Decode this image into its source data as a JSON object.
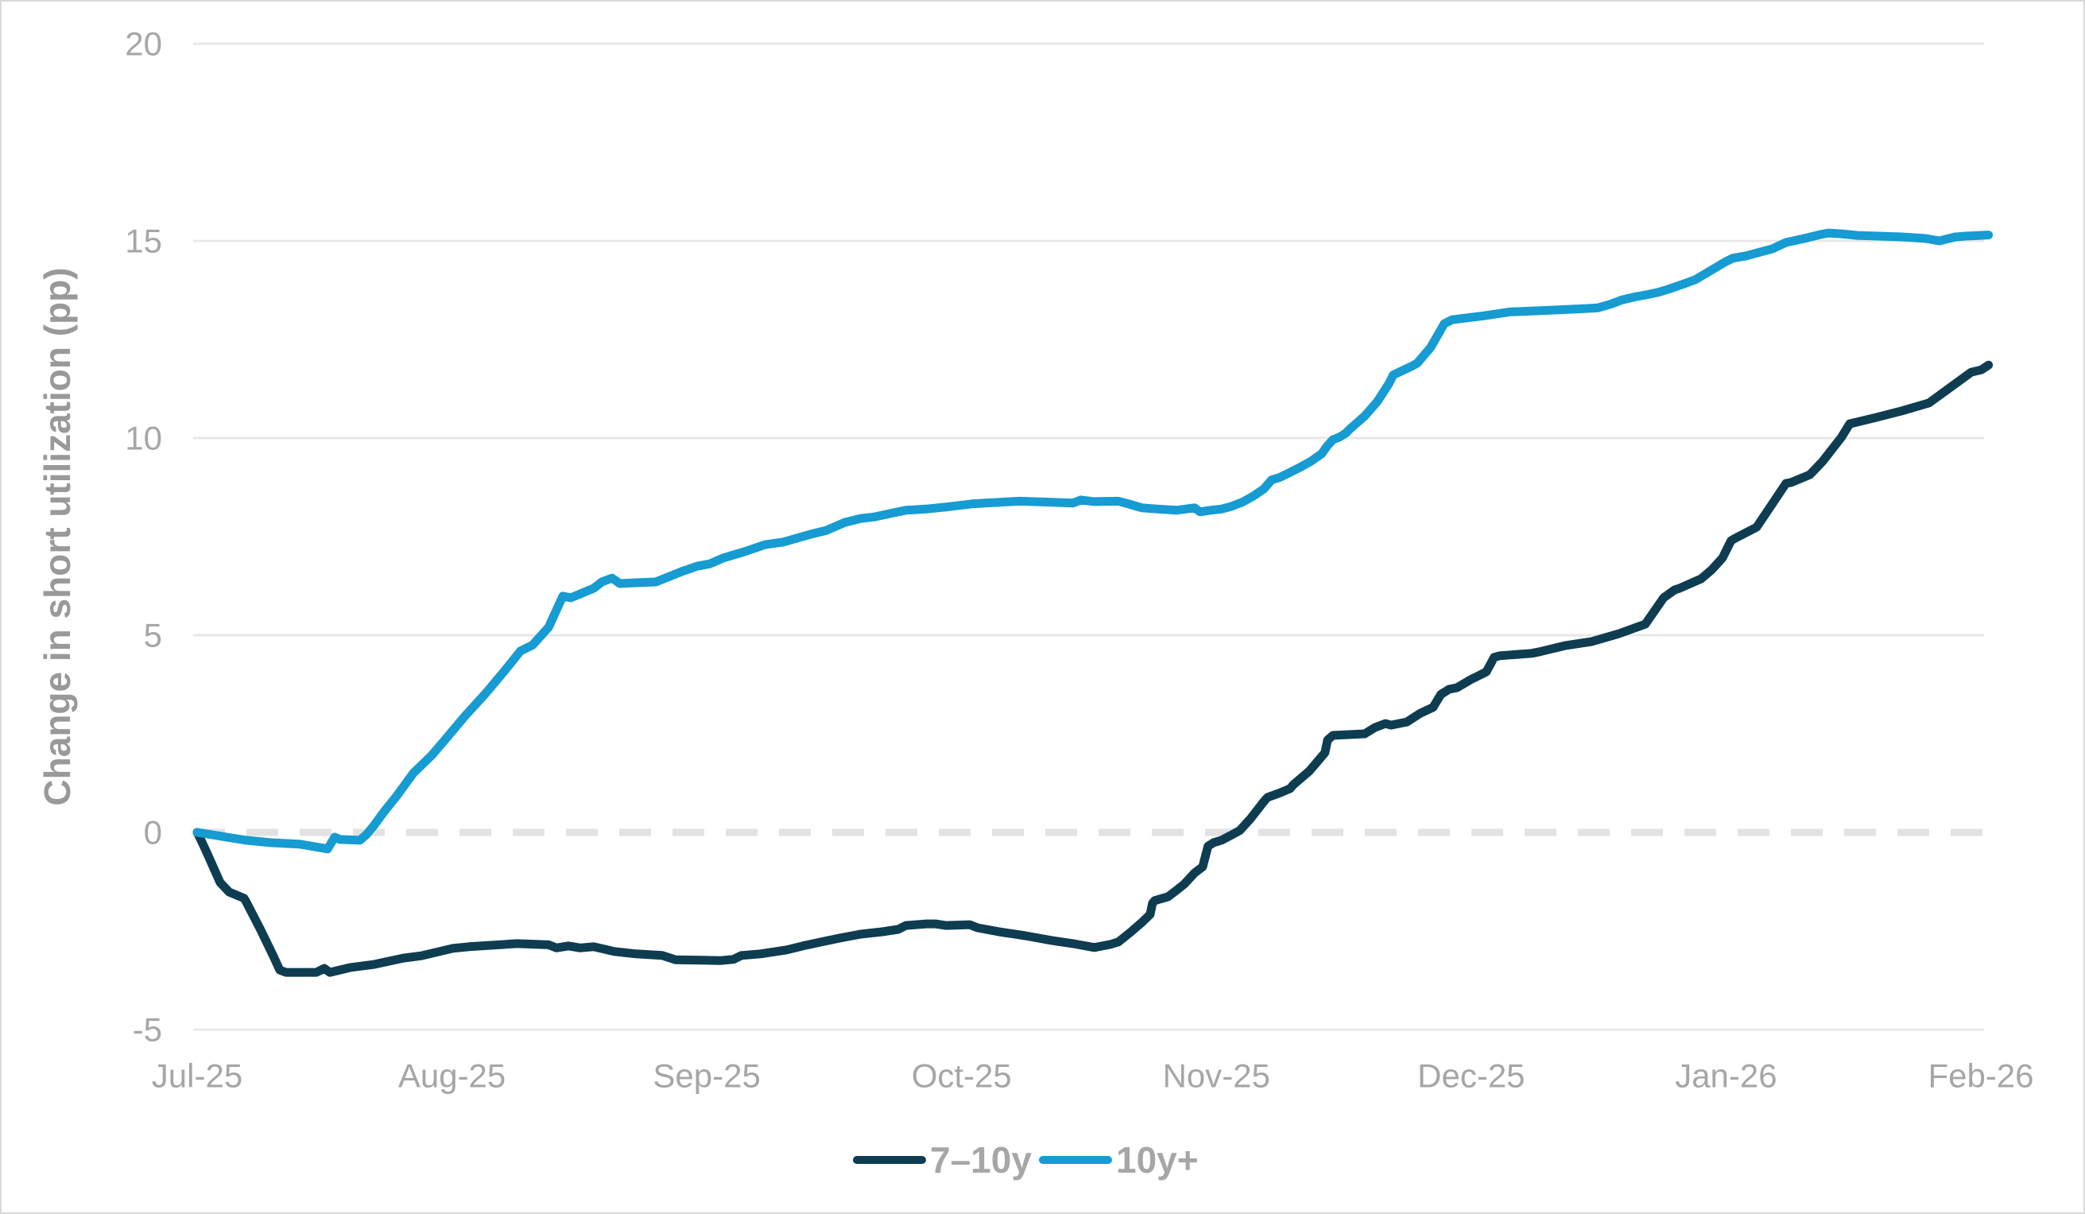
{
  "colors": {
    "background": "#ffffff",
    "frame_border": "#d9d9d9",
    "gridline": "#e8e8e8",
    "zero_dash_line": "#e2e2e2",
    "tick_text": "#a6a6a6",
    "axis_title_text": "#999999",
    "legend_text": "#a6a6a6",
    "series_7_10y": "#0e3d52",
    "series_10y_plus": "#169bd2"
  },
  "chart_data": {
    "type": "line",
    "title": "",
    "xlabel": "",
    "ylabel": "Change in short utilization (pp)",
    "x_ticks": [
      "Jul-25",
      "Aug-25",
      "Sep-25",
      "Oct-25",
      "Nov-25",
      "Dec-25",
      "Jan-26",
      "Feb-26"
    ],
    "x_unit": "months since Jul-25 (0 = Jul-25 ... 7 = Feb-26)",
    "y_ticks": [
      20,
      15,
      10,
      5,
      0,
      -5
    ],
    "ylim": [
      -5,
      20
    ],
    "grid": "horizontal-only",
    "zero_line": "dashed",
    "legend_position": "bottom-center",
    "series": [
      {
        "name": "7–10y",
        "color": "#0e3d52",
        "points": [
          [
            0.0,
            0.0
          ],
          [
            0.012,
            -0.15
          ],
          [
            0.037,
            -0.5
          ],
          [
            0.09,
            -1.27
          ],
          [
            0.125,
            -1.51
          ],
          [
            0.184,
            -1.67
          ],
          [
            0.193,
            -1.77
          ],
          [
            0.25,
            -2.48
          ],
          [
            0.303,
            -3.19
          ],
          [
            0.324,
            -3.49
          ],
          [
            0.349,
            -3.55
          ],
          [
            0.468,
            -3.55
          ],
          [
            0.499,
            -3.45
          ],
          [
            0.521,
            -3.55
          ],
          [
            0.599,
            -3.43
          ],
          [
            0.692,
            -3.35
          ],
          [
            0.764,
            -3.25
          ],
          [
            0.808,
            -3.19
          ],
          [
            0.88,
            -3.13
          ],
          [
            0.951,
            -3.02
          ],
          [
            1.004,
            -2.94
          ],
          [
            1.067,
            -2.9
          ],
          [
            1.16,
            -2.86
          ],
          [
            1.254,
            -2.82
          ],
          [
            1.379,
            -2.85
          ],
          [
            1.41,
            -2.93
          ],
          [
            1.457,
            -2.88
          ],
          [
            1.503,
            -2.93
          ],
          [
            1.556,
            -2.9
          ],
          [
            1.637,
            -3.02
          ],
          [
            1.722,
            -3.08
          ],
          [
            1.825,
            -3.12
          ],
          [
            1.878,
            -3.23
          ],
          [
            2.055,
            -3.25
          ],
          [
            2.105,
            -3.22
          ],
          [
            2.136,
            -3.12
          ],
          [
            2.211,
            -3.08
          ],
          [
            2.314,
            -2.98
          ],
          [
            2.377,
            -2.88
          ],
          [
            2.448,
            -2.78
          ],
          [
            2.523,
            -2.68
          ],
          [
            2.604,
            -2.58
          ],
          [
            2.689,
            -2.52
          ],
          [
            2.751,
            -2.46
          ],
          [
            2.782,
            -2.36
          ],
          [
            2.86,
            -2.32
          ],
          [
            2.898,
            -2.32
          ],
          [
            2.938,
            -2.36
          ],
          [
            3.032,
            -2.34
          ],
          [
            3.063,
            -2.42
          ],
          [
            3.147,
            -2.52
          ],
          [
            3.25,
            -2.62
          ],
          [
            3.353,
            -2.74
          ],
          [
            3.437,
            -2.82
          ],
          [
            3.521,
            -2.92
          ],
          [
            3.584,
            -2.84
          ],
          [
            3.615,
            -2.78
          ],
          [
            3.665,
            -2.52
          ],
          [
            3.708,
            -2.28
          ],
          [
            3.74,
            -2.08
          ],
          [
            3.749,
            -1.8
          ],
          [
            3.758,
            -1.73
          ],
          [
            3.811,
            -1.63
          ],
          [
            3.843,
            -1.47
          ],
          [
            3.874,
            -1.31
          ],
          [
            3.914,
            -1.03
          ],
          [
            3.946,
            -0.87
          ],
          [
            3.967,
            -0.35
          ],
          [
            3.989,
            -0.26
          ],
          [
            4.02,
            -0.2
          ],
          [
            4.061,
            -0.06
          ],
          [
            4.092,
            0.05
          ],
          [
            4.133,
            0.34
          ],
          [
            4.186,
            0.78
          ],
          [
            4.201,
            0.89
          ],
          [
            4.248,
            1.0
          ],
          [
            4.289,
            1.11
          ],
          [
            4.302,
            1.21
          ],
          [
            4.364,
            1.55
          ],
          [
            4.426,
            2.02
          ],
          [
            4.436,
            2.34
          ],
          [
            4.457,
            2.46
          ],
          [
            4.52,
            2.48
          ],
          [
            4.582,
            2.5
          ],
          [
            4.622,
            2.66
          ],
          [
            4.663,
            2.76
          ],
          [
            4.685,
            2.72
          ],
          [
            4.716,
            2.76
          ],
          [
            4.747,
            2.8
          ],
          [
            4.8,
            3.02
          ],
          [
            4.85,
            3.17
          ],
          [
            4.881,
            3.5
          ],
          [
            4.913,
            3.63
          ],
          [
            4.944,
            3.67
          ],
          [
            4.997,
            3.87
          ],
          [
            5.059,
            4.07
          ],
          [
            5.09,
            4.44
          ],
          [
            5.112,
            4.48
          ],
          [
            5.237,
            4.54
          ],
          [
            5.268,
            4.58
          ],
          [
            5.371,
            4.74
          ],
          [
            5.474,
            4.84
          ],
          [
            5.58,
            5.04
          ],
          [
            5.683,
            5.28
          ],
          [
            5.755,
            5.95
          ],
          [
            5.798,
            6.15
          ],
          [
            5.817,
            6.19
          ],
          [
            5.902,
            6.43
          ],
          [
            5.942,
            6.65
          ],
          [
            5.986,
            6.96
          ],
          [
            6.02,
            7.4
          ],
          [
            6.036,
            7.46
          ],
          [
            6.12,
            7.74
          ],
          [
            6.173,
            8.25
          ],
          [
            6.235,
            8.85
          ],
          [
            6.254,
            8.87
          ],
          [
            6.329,
            9.07
          ],
          [
            6.379,
            9.41
          ],
          [
            6.453,
            10.02
          ],
          [
            6.485,
            10.36
          ],
          [
            6.588,
            10.52
          ],
          [
            6.69,
            10.69
          ],
          [
            6.796,
            10.89
          ],
          [
            6.877,
            11.27
          ],
          [
            6.962,
            11.67
          ],
          [
            7.002,
            11.73
          ],
          [
            7.03,
            11.85
          ]
        ]
      },
      {
        "name": "10y+",
        "color": "#169bd2",
        "points": [
          [
            0.0,
            0.0
          ],
          [
            0.05,
            -0.05
          ],
          [
            0.115,
            -0.12
          ],
          [
            0.193,
            -0.2
          ],
          [
            0.287,
            -0.26
          ],
          [
            0.405,
            -0.3
          ],
          [
            0.512,
            -0.42
          ],
          [
            0.54,
            -0.12
          ],
          [
            0.561,
            -0.18
          ],
          [
            0.639,
            -0.2
          ],
          [
            0.665,
            -0.05
          ],
          [
            0.692,
            0.16
          ],
          [
            0.733,
            0.52
          ],
          [
            0.786,
            0.95
          ],
          [
            0.848,
            1.5
          ],
          [
            0.92,
            1.95
          ],
          [
            0.973,
            2.35
          ],
          [
            1.051,
            2.95
          ],
          [
            1.129,
            3.5
          ],
          [
            1.207,
            4.1
          ],
          [
            1.269,
            4.6
          ],
          [
            1.316,
            4.75
          ],
          [
            1.379,
            5.2
          ],
          [
            1.435,
            5.99
          ],
          [
            1.466,
            5.95
          ],
          [
            1.556,
            6.19
          ],
          [
            1.588,
            6.35
          ],
          [
            1.628,
            6.45
          ],
          [
            1.659,
            6.31
          ],
          [
            1.722,
            6.33
          ],
          [
            1.8,
            6.35
          ],
          [
            1.9,
            6.61
          ],
          [
            1.962,
            6.75
          ],
          [
            2.012,
            6.81
          ],
          [
            2.065,
            6.96
          ],
          [
            2.149,
            7.12
          ],
          [
            2.23,
            7.3
          ],
          [
            2.299,
            7.36
          ],
          [
            2.408,
            7.56
          ],
          [
            2.47,
            7.66
          ],
          [
            2.542,
            7.86
          ],
          [
            2.604,
            7.96
          ],
          [
            2.657,
            8.0
          ],
          [
            2.729,
            8.1
          ],
          [
            2.782,
            8.17
          ],
          [
            2.86,
            8.2
          ],
          [
            2.938,
            8.25
          ],
          [
            3.041,
            8.33
          ],
          [
            3.197,
            8.39
          ],
          [
            3.228,
            8.4
          ],
          [
            3.353,
            8.37
          ],
          [
            3.437,
            8.35
          ],
          [
            3.468,
            8.43
          ],
          [
            3.521,
            8.39
          ],
          [
            3.615,
            8.4
          ],
          [
            3.655,
            8.33
          ],
          [
            3.708,
            8.23
          ],
          [
            3.771,
            8.2
          ],
          [
            3.843,
            8.17
          ],
          [
            3.914,
            8.23
          ],
          [
            3.936,
            8.13
          ],
          [
            3.977,
            8.17
          ],
          [
            4.02,
            8.2
          ],
          [
            4.061,
            8.27
          ],
          [
            4.101,
            8.37
          ],
          [
            4.145,
            8.53
          ],
          [
            4.186,
            8.71
          ],
          [
            4.217,
            8.94
          ],
          [
            4.248,
            9.0
          ],
          [
            4.289,
            9.13
          ],
          [
            4.332,
            9.27
          ],
          [
            4.373,
            9.42
          ],
          [
            4.413,
            9.6
          ],
          [
            4.435,
            9.8
          ],
          [
            4.457,
            9.96
          ],
          [
            4.482,
            10.02
          ],
          [
            4.507,
            10.12
          ],
          [
            4.529,
            10.26
          ],
          [
            4.582,
            10.56
          ],
          [
            4.632,
            10.93
          ],
          [
            4.676,
            11.37
          ],
          [
            4.694,
            11.6
          ],
          [
            4.769,
            11.83
          ],
          [
            4.788,
            11.9
          ],
          [
            4.841,
            12.3
          ],
          [
            4.894,
            12.9
          ],
          [
            4.925,
            13.0
          ],
          [
            4.987,
            13.05
          ],
          [
            5.05,
            13.1
          ],
          [
            5.153,
            13.2
          ],
          [
            5.309,
            13.24
          ],
          [
            5.443,
            13.28
          ],
          [
            5.496,
            13.3
          ],
          [
            5.549,
            13.4
          ],
          [
            5.59,
            13.5
          ],
          [
            5.643,
            13.58
          ],
          [
            5.693,
            13.64
          ],
          [
            5.736,
            13.7
          ],
          [
            5.777,
            13.78
          ],
          [
            5.83,
            13.9
          ],
          [
            5.88,
            14.02
          ],
          [
            5.995,
            14.46
          ],
          [
            6.026,
            14.56
          ],
          [
            6.079,
            14.62
          ],
          [
            6.182,
            14.8
          ],
          [
            6.235,
            14.96
          ],
          [
            6.307,
            15.06
          ],
          [
            6.369,
            15.16
          ],
          [
            6.4,
            15.2
          ],
          [
            6.453,
            15.18
          ],
          [
            6.516,
            15.14
          ],
          [
            6.597,
            15.12
          ],
          [
            6.69,
            15.1
          ],
          [
            6.784,
            15.06
          ],
          [
            6.837,
            15.0
          ],
          [
            6.9,
            15.1
          ],
          [
            6.94,
            15.12
          ],
          [
            7.03,
            15.15
          ]
        ]
      }
    ]
  },
  "legend": {
    "items": [
      {
        "label": "7–10y",
        "color": "#0e3d52"
      },
      {
        "label": "10y+",
        "color": "#169bd2"
      }
    ]
  }
}
